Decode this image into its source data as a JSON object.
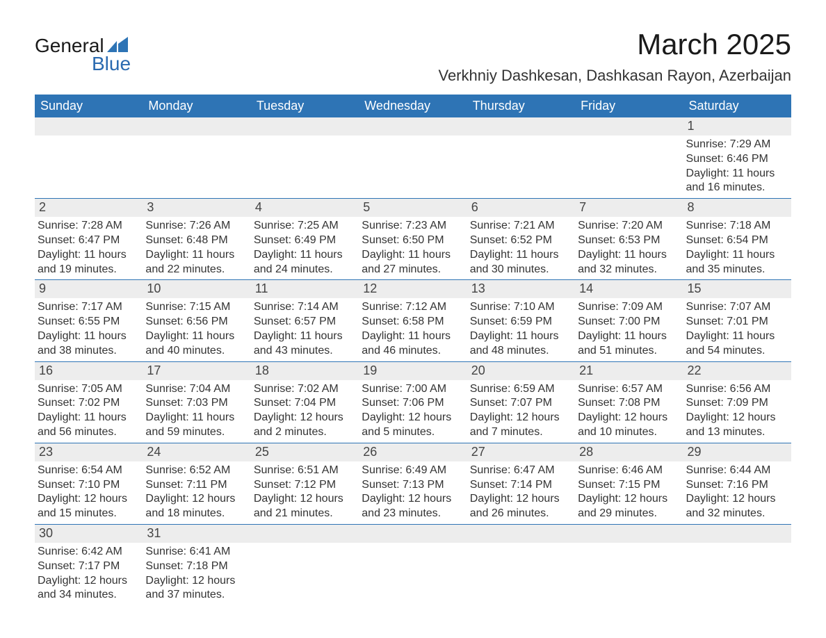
{
  "brand": {
    "word1": "General",
    "word2": "Blue",
    "mark_color": "#2e74b5",
    "word1_color": "#1a1a1a",
    "word2_color": "#2a6ab0"
  },
  "title": "March 2025",
  "location": "Verkhniy Dashkesan, Dashkasan Rayon, Azerbaijan",
  "colors": {
    "header_bg": "#2e74b5",
    "header_text": "#ffffff",
    "daynum_bg": "#ededed",
    "daynum_text": "#444444",
    "body_text": "#333333",
    "row_divider": "#2e74b5",
    "page_bg": "#ffffff"
  },
  "fonts": {
    "title_size_pt": 32,
    "location_size_pt": 17,
    "dow_size_pt": 14,
    "daynum_size_pt": 14,
    "body_size_pt": 12,
    "family": "Arial"
  },
  "days_of_week": [
    "Sunday",
    "Monday",
    "Tuesday",
    "Wednesday",
    "Thursday",
    "Friday",
    "Saturday"
  ],
  "weeks": [
    [
      {
        "day": "",
        "sunrise": "",
        "sunset": "",
        "daylight": ""
      },
      {
        "day": "",
        "sunrise": "",
        "sunset": "",
        "daylight": ""
      },
      {
        "day": "",
        "sunrise": "",
        "sunset": "",
        "daylight": ""
      },
      {
        "day": "",
        "sunrise": "",
        "sunset": "",
        "daylight": ""
      },
      {
        "day": "",
        "sunrise": "",
        "sunset": "",
        "daylight": ""
      },
      {
        "day": "",
        "sunrise": "",
        "sunset": "",
        "daylight": ""
      },
      {
        "day": "1",
        "sunrise": "Sunrise: 7:29 AM",
        "sunset": "Sunset: 6:46 PM",
        "daylight": "Daylight: 11 hours and 16 minutes."
      }
    ],
    [
      {
        "day": "2",
        "sunrise": "Sunrise: 7:28 AM",
        "sunset": "Sunset: 6:47 PM",
        "daylight": "Daylight: 11 hours and 19 minutes."
      },
      {
        "day": "3",
        "sunrise": "Sunrise: 7:26 AM",
        "sunset": "Sunset: 6:48 PM",
        "daylight": "Daylight: 11 hours and 22 minutes."
      },
      {
        "day": "4",
        "sunrise": "Sunrise: 7:25 AM",
        "sunset": "Sunset: 6:49 PM",
        "daylight": "Daylight: 11 hours and 24 minutes."
      },
      {
        "day": "5",
        "sunrise": "Sunrise: 7:23 AM",
        "sunset": "Sunset: 6:50 PM",
        "daylight": "Daylight: 11 hours and 27 minutes."
      },
      {
        "day": "6",
        "sunrise": "Sunrise: 7:21 AM",
        "sunset": "Sunset: 6:52 PM",
        "daylight": "Daylight: 11 hours and 30 minutes."
      },
      {
        "day": "7",
        "sunrise": "Sunrise: 7:20 AM",
        "sunset": "Sunset: 6:53 PM",
        "daylight": "Daylight: 11 hours and 32 minutes."
      },
      {
        "day": "8",
        "sunrise": "Sunrise: 7:18 AM",
        "sunset": "Sunset: 6:54 PM",
        "daylight": "Daylight: 11 hours and 35 minutes."
      }
    ],
    [
      {
        "day": "9",
        "sunrise": "Sunrise: 7:17 AM",
        "sunset": "Sunset: 6:55 PM",
        "daylight": "Daylight: 11 hours and 38 minutes."
      },
      {
        "day": "10",
        "sunrise": "Sunrise: 7:15 AM",
        "sunset": "Sunset: 6:56 PM",
        "daylight": "Daylight: 11 hours and 40 minutes."
      },
      {
        "day": "11",
        "sunrise": "Sunrise: 7:14 AM",
        "sunset": "Sunset: 6:57 PM",
        "daylight": "Daylight: 11 hours and 43 minutes."
      },
      {
        "day": "12",
        "sunrise": "Sunrise: 7:12 AM",
        "sunset": "Sunset: 6:58 PM",
        "daylight": "Daylight: 11 hours and 46 minutes."
      },
      {
        "day": "13",
        "sunrise": "Sunrise: 7:10 AM",
        "sunset": "Sunset: 6:59 PM",
        "daylight": "Daylight: 11 hours and 48 minutes."
      },
      {
        "day": "14",
        "sunrise": "Sunrise: 7:09 AM",
        "sunset": "Sunset: 7:00 PM",
        "daylight": "Daylight: 11 hours and 51 minutes."
      },
      {
        "day": "15",
        "sunrise": "Sunrise: 7:07 AM",
        "sunset": "Sunset: 7:01 PM",
        "daylight": "Daylight: 11 hours and 54 minutes."
      }
    ],
    [
      {
        "day": "16",
        "sunrise": "Sunrise: 7:05 AM",
        "sunset": "Sunset: 7:02 PM",
        "daylight": "Daylight: 11 hours and 56 minutes."
      },
      {
        "day": "17",
        "sunrise": "Sunrise: 7:04 AM",
        "sunset": "Sunset: 7:03 PM",
        "daylight": "Daylight: 11 hours and 59 minutes."
      },
      {
        "day": "18",
        "sunrise": "Sunrise: 7:02 AM",
        "sunset": "Sunset: 7:04 PM",
        "daylight": "Daylight: 12 hours and 2 minutes."
      },
      {
        "day": "19",
        "sunrise": "Sunrise: 7:00 AM",
        "sunset": "Sunset: 7:06 PM",
        "daylight": "Daylight: 12 hours and 5 minutes."
      },
      {
        "day": "20",
        "sunrise": "Sunrise: 6:59 AM",
        "sunset": "Sunset: 7:07 PM",
        "daylight": "Daylight: 12 hours and 7 minutes."
      },
      {
        "day": "21",
        "sunrise": "Sunrise: 6:57 AM",
        "sunset": "Sunset: 7:08 PM",
        "daylight": "Daylight: 12 hours and 10 minutes."
      },
      {
        "day": "22",
        "sunrise": "Sunrise: 6:56 AM",
        "sunset": "Sunset: 7:09 PM",
        "daylight": "Daylight: 12 hours and 13 minutes."
      }
    ],
    [
      {
        "day": "23",
        "sunrise": "Sunrise: 6:54 AM",
        "sunset": "Sunset: 7:10 PM",
        "daylight": "Daylight: 12 hours and 15 minutes."
      },
      {
        "day": "24",
        "sunrise": "Sunrise: 6:52 AM",
        "sunset": "Sunset: 7:11 PM",
        "daylight": "Daylight: 12 hours and 18 minutes."
      },
      {
        "day": "25",
        "sunrise": "Sunrise: 6:51 AM",
        "sunset": "Sunset: 7:12 PM",
        "daylight": "Daylight: 12 hours and 21 minutes."
      },
      {
        "day": "26",
        "sunrise": "Sunrise: 6:49 AM",
        "sunset": "Sunset: 7:13 PM",
        "daylight": "Daylight: 12 hours and 23 minutes."
      },
      {
        "day": "27",
        "sunrise": "Sunrise: 6:47 AM",
        "sunset": "Sunset: 7:14 PM",
        "daylight": "Daylight: 12 hours and 26 minutes."
      },
      {
        "day": "28",
        "sunrise": "Sunrise: 6:46 AM",
        "sunset": "Sunset: 7:15 PM",
        "daylight": "Daylight: 12 hours and 29 minutes."
      },
      {
        "day": "29",
        "sunrise": "Sunrise: 6:44 AM",
        "sunset": "Sunset: 7:16 PM",
        "daylight": "Daylight: 12 hours and 32 minutes."
      }
    ],
    [
      {
        "day": "30",
        "sunrise": "Sunrise: 6:42 AM",
        "sunset": "Sunset: 7:17 PM",
        "daylight": "Daylight: 12 hours and 34 minutes."
      },
      {
        "day": "31",
        "sunrise": "Sunrise: 6:41 AM",
        "sunset": "Sunset: 7:18 PM",
        "daylight": "Daylight: 12 hours and 37 minutes."
      },
      {
        "day": "",
        "sunrise": "",
        "sunset": "",
        "daylight": ""
      },
      {
        "day": "",
        "sunrise": "",
        "sunset": "",
        "daylight": ""
      },
      {
        "day": "",
        "sunrise": "",
        "sunset": "",
        "daylight": ""
      },
      {
        "day": "",
        "sunrise": "",
        "sunset": "",
        "daylight": ""
      },
      {
        "day": "",
        "sunrise": "",
        "sunset": "",
        "daylight": ""
      }
    ]
  ]
}
